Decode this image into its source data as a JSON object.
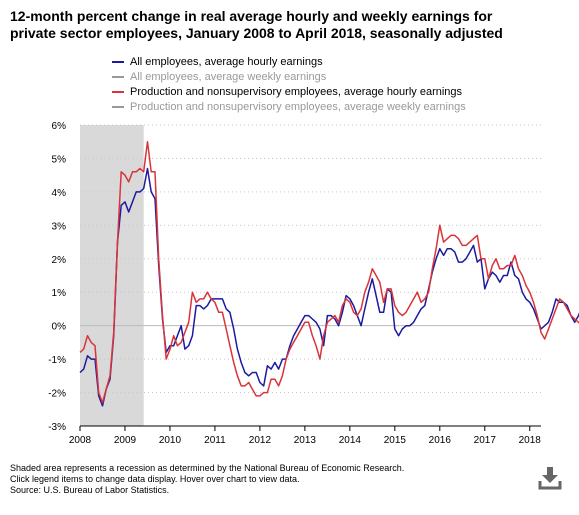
{
  "title_line1": "12-month percent change in real average hourly and weekly earnings for",
  "title_line2": "private sector employees, January 2008 to April 2018, seasonally adjusted",
  "legend": [
    {
      "label": "All employees, average hourly earnings",
      "color": "#1b1ba0",
      "visible": true
    },
    {
      "label": "All employees, average weekly earnings",
      "color": "#999999",
      "visible": false
    },
    {
      "label": "Production and nonsupervisory employees, average hourly earnings",
      "color": "#d9343a",
      "visible": true
    },
    {
      "label": "Production and nonsupervisory employees, average weekly earnings",
      "color": "#999999",
      "visible": false
    }
  ],
  "notes": [
    "Shaded area represents a recession as determined by the National Bureau of Economic Research.",
    "Click legend items to change data display. Hover over chart to view data.",
    "Source: U.S. Bureau of Labor Statistics."
  ],
  "download_icon": "download-icon",
  "chart_data": {
    "type": "line",
    "x_start": "2008-01",
    "x_end": "2018-04",
    "x_ticks": [
      "2008",
      "2009",
      "2010",
      "2011",
      "2012",
      "2013",
      "2014",
      "2015",
      "2016",
      "2017",
      "2018"
    ],
    "y_ticks": [
      "6%",
      "5%",
      "4%",
      "3%",
      "2%",
      "1%",
      "0%",
      "-1%",
      "-2%",
      "-3%"
    ],
    "ylim": [
      -3,
      6
    ],
    "grid": true,
    "recession": {
      "start": "2008-01",
      "end": "2009-06",
      "color": "#d9d9d9"
    },
    "series": [
      {
        "name": "All employees, average hourly earnings",
        "color": "#1b1ba0",
        "values": [
          -1.4,
          -1.3,
          -0.9,
          -1.0,
          -1.0,
          -2.1,
          -2.4,
          -1.9,
          -1.6,
          -0.3,
          2.5,
          3.6,
          3.7,
          3.4,
          3.7,
          4.0,
          4.0,
          4.1,
          4.7,
          4.0,
          3.8,
          1.8,
          0.2,
          -0.8,
          -0.6,
          -0.6,
          -0.3,
          0.0,
          -0.7,
          -0.6,
          -0.3,
          0.6,
          0.6,
          0.5,
          0.6,
          0.8,
          0.8,
          0.8,
          0.8,
          0.5,
          0.4,
          -0.1,
          -0.7,
          -1.1,
          -1.4,
          -1.5,
          -1.4,
          -1.4,
          -1.7,
          -1.8,
          -1.2,
          -1.3,
          -1.1,
          -1.3,
          -1.0,
          -1.0,
          -0.6,
          -0.3,
          -0.1,
          0.1,
          0.3,
          0.3,
          0.2,
          0.1,
          -0.1,
          -0.6,
          0.3,
          0.3,
          0.2,
          0.0,
          0.4,
          0.9,
          0.8,
          0.6,
          0.3,
          0.0,
          0.5,
          1.0,
          1.4,
          0.9,
          0.4,
          0.4,
          1.1,
          1.0,
          -0.1,
          -0.3,
          -0.1,
          0.0,
          0.0,
          0.1,
          0.3,
          0.5,
          0.6,
          1.1,
          1.6,
          2.0,
          2.3,
          2.1,
          2.3,
          2.3,
          2.2,
          1.9,
          1.9,
          2.0,
          2.2,
          2.4,
          1.9,
          2.0,
          1.1,
          1.4,
          1.6,
          1.5,
          1.3,
          1.5,
          1.5,
          1.9,
          1.5,
          1.4,
          1.0,
          0.8,
          0.7,
          0.5,
          0.2,
          -0.1,
          0.0,
          0.1,
          0.4,
          0.8,
          0.7,
          0.7,
          0.6,
          0.3,
          0.1,
          0.3,
          0.6,
          0.7,
          0.3,
          0.3,
          0.2
        ]
      },
      {
        "name": "Production and nonsupervisory employees, average hourly earnings",
        "color": "#d9343a",
        "values": [
          -0.8,
          -0.7,
          -0.3,
          -0.5,
          -0.6,
          -2.0,
          -2.3,
          -1.9,
          -1.5,
          -0.2,
          2.5,
          4.6,
          4.5,
          4.3,
          4.6,
          4.6,
          4.7,
          4.6,
          5.5,
          4.6,
          4.6,
          2.0,
          0.3,
          -1.0,
          -0.7,
          -0.3,
          -0.6,
          -0.5,
          -0.2,
          0.1,
          1.0,
          0.7,
          0.8,
          0.8,
          1.0,
          0.8,
          0.7,
          0.4,
          0.4,
          -0.1,
          -0.6,
          -1.1,
          -1.5,
          -1.8,
          -1.8,
          -1.7,
          -1.9,
          -2.1,
          -2.1,
          -2.0,
          -2.0,
          -1.6,
          -1.6,
          -1.8,
          -1.5,
          -1.0,
          -0.7,
          -0.5,
          -0.3,
          -0.1,
          0.1,
          0.1,
          -0.3,
          -0.6,
          -1.0,
          -0.3,
          0.1,
          0.2,
          0.3,
          0.1,
          0.6,
          0.8,
          0.7,
          0.4,
          0.3,
          0.5,
          1.0,
          1.3,
          1.7,
          1.5,
          1.3,
          0.7,
          1.1,
          1.1,
          0.6,
          0.4,
          0.3,
          0.4,
          0.6,
          0.8,
          1.0,
          0.7,
          0.8,
          1.0,
          1.7,
          2.3,
          3.0,
          2.5,
          2.6,
          2.7,
          2.7,
          2.6,
          2.4,
          2.4,
          2.5,
          2.6,
          2.7,
          2.0,
          2.0,
          1.4,
          1.8,
          2.0,
          1.7,
          1.7,
          1.8,
          1.8,
          2.1,
          1.7,
          1.5,
          1.2,
          1.0,
          0.7,
          0.3,
          -0.2,
          -0.4,
          -0.1,
          0.2,
          0.5,
          0.8,
          0.7,
          0.5,
          0.3,
          0.2,
          0.1,
          0.0,
          0.2,
          0.1,
          0.0,
          0.2,
          0.0
        ]
      }
    ]
  }
}
